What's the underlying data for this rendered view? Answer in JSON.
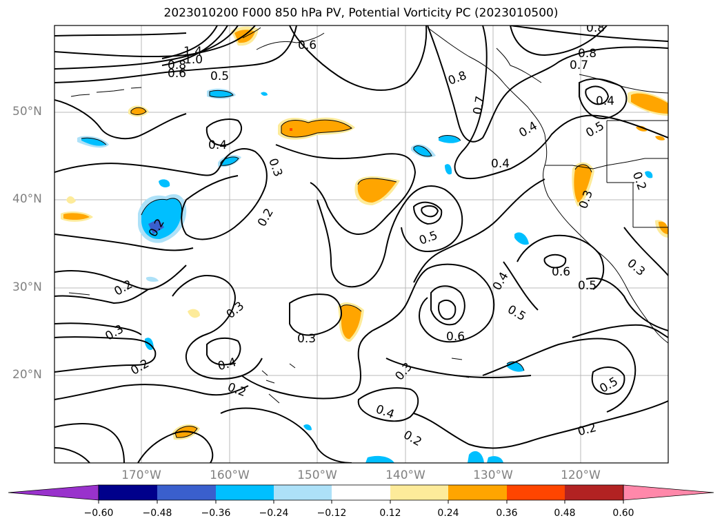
{
  "title": "2023010200 F000 850 hPa PV, Potential Vorticity PC (2023010500)",
  "lat_labels": [
    "50°N",
    "40°N",
    "30°N",
    "20°N"
  ],
  "lon_labels": [
    "170°W",
    "160°W",
    "150°W",
    "140°W",
    "130°W",
    "120°W"
  ],
  "colorbar": {
    "ticks": [
      "−0.60",
      "−0.48",
      "−0.36",
      "−0.24",
      "−0.12",
      "0.12",
      "0.24",
      "0.36",
      "0.48",
      "0.60"
    ],
    "colors": [
      "#9932CC",
      "#00008B",
      "#3A5FCD",
      "#00BFFF",
      "#ADE1F8",
      "#FFFFFF",
      "#FDEB9A",
      "#FFA500",
      "#FF4500",
      "#B22222",
      "#FF88AA"
    ]
  },
  "contour_labels": [
    {
      "text": "1.4"
    },
    {
      "text": "1.0"
    },
    {
      "text": "0.8"
    },
    {
      "text": "0.6"
    },
    {
      "text": "0.5"
    },
    {
      "text": "0.6"
    },
    {
      "text": "0.8"
    },
    {
      "text": "0.7"
    },
    {
      "text": "0.7"
    },
    {
      "text": "0.8"
    },
    {
      "text": "0.8"
    },
    {
      "text": "0.4"
    },
    {
      "text": "0.4"
    },
    {
      "text": "0.5"
    },
    {
      "text": "0.4"
    },
    {
      "text": "0.4"
    },
    {
      "text": "0.3"
    },
    {
      "text": "0.2"
    },
    {
      "text": "0.2"
    },
    {
      "text": "0.5"
    },
    {
      "text": "0.3"
    },
    {
      "text": "0.2"
    },
    {
      "text": "0.3"
    },
    {
      "text": "0.3"
    },
    {
      "text": "0.4"
    },
    {
      "text": "0.6"
    },
    {
      "text": "0.5"
    },
    {
      "text": "0.4"
    },
    {
      "text": "0.6"
    },
    {
      "text": "0.5"
    },
    {
      "text": "0.3"
    },
    {
      "text": "0.2"
    },
    {
      "text": "0.2"
    },
    {
      "text": "0.3"
    },
    {
      "text": "0.4"
    },
    {
      "text": "0.2"
    },
    {
      "text": "0.2"
    },
    {
      "text": "0.5"
    },
    {
      "text": "0.3"
    }
  ]
}
